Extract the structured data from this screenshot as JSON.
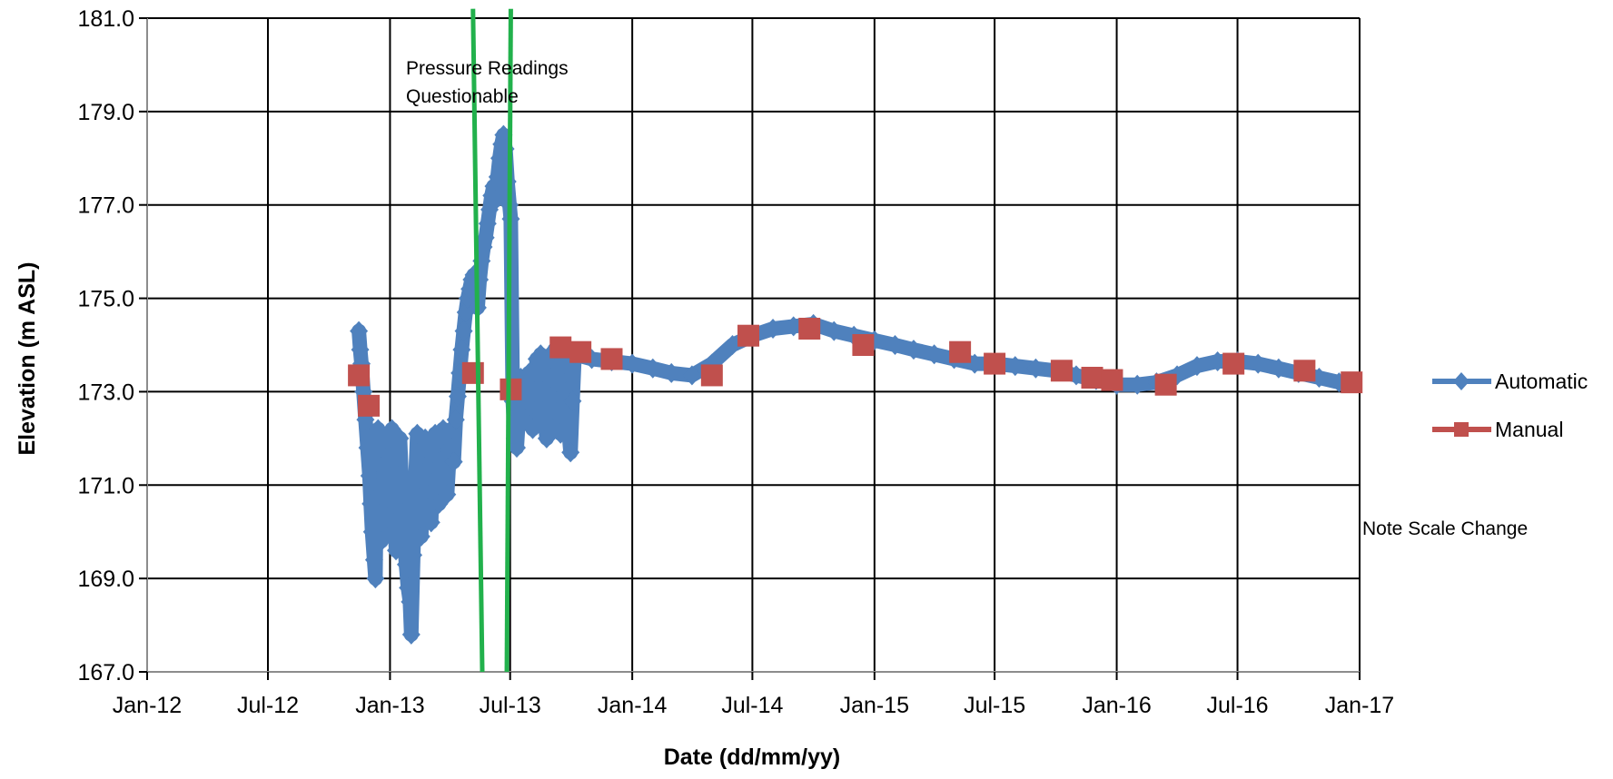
{
  "chart_data": {
    "type": "scatter",
    "title": "",
    "xlabel": "Date (dd/mm/yy)",
    "ylabel": "Elevation (m ASL)",
    "xlim": [
      "2012-01-01",
      "2017-01-01"
    ],
    "ylim": [
      167.0,
      181.0
    ],
    "grid": true,
    "legend_position": "right",
    "x_ticks": [
      "Jan-12",
      "Jul-12",
      "Jan-13",
      "Jul-13",
      "Jan-14",
      "Jul-14",
      "Jan-15",
      "Jul-15",
      "Jan-16",
      "Jul-16",
      "Jan-17"
    ],
    "x_tick_dates": [
      "2012-01-01",
      "2012-07-01",
      "2013-01-01",
      "2013-07-01",
      "2014-01-01",
      "2014-07-01",
      "2015-01-01",
      "2015-07-01",
      "2016-01-01",
      "2016-07-01",
      "2017-01-01"
    ],
    "y_ticks": [
      "167.0",
      "169.0",
      "171.0",
      "173.0",
      "175.0",
      "177.0",
      "179.0",
      "181.0"
    ],
    "y_tick_values": [
      167,
      169,
      171,
      173,
      175,
      177,
      179,
      181
    ],
    "annotations": {
      "pressure_line1": "Pressure  Readings",
      "pressure_line2": "Questionable",
      "scale_note": "Note Scale Change"
    },
    "marker_lines": [
      {
        "color": "#22B14C",
        "from": {
          "x": "2013-05-06",
          "y": 181.2
        },
        "to": {
          "x": "2013-05-20",
          "y": 167.0
        }
      },
      {
        "color": "#22B14C",
        "from": {
          "x": "2013-07-02",
          "y": 181.2
        },
        "to": {
          "x": "2013-06-26",
          "y": 167.0
        }
      }
    ],
    "series": [
      {
        "name": "Automatic",
        "color": "#4F81BD",
        "marker": "diamond",
        "points": [
          [
            "2012-11-15",
            174.3
          ],
          [
            "2012-11-17",
            173.9
          ],
          [
            "2012-11-19",
            173.6
          ],
          [
            "2012-11-22",
            173.0
          ],
          [
            "2012-11-25",
            172.4
          ],
          [
            "2012-11-28",
            171.8
          ],
          [
            "2012-12-01",
            171.2
          ],
          [
            "2012-12-03",
            170.6
          ],
          [
            "2012-12-05",
            170.0
          ],
          [
            "2012-12-08",
            169.4
          ],
          [
            "2012-12-10",
            169.0
          ],
          [
            "2012-12-12",
            171.5
          ],
          [
            "2012-12-14",
            172.2
          ],
          [
            "2012-12-16",
            170.8
          ],
          [
            "2012-12-19",
            169.8
          ],
          [
            "2012-12-22",
            171.0
          ],
          [
            "2012-12-25",
            172.0
          ],
          [
            "2012-12-28",
            170.3
          ],
          [
            "2013-01-01",
            171.6
          ],
          [
            "2013-01-04",
            172.2
          ],
          [
            "2013-01-07",
            170.6
          ],
          [
            "2013-01-10",
            169.6
          ],
          [
            "2013-01-13",
            171.2
          ],
          [
            "2013-01-16",
            172.0
          ],
          [
            "2013-01-19",
            170.9
          ],
          [
            "2013-01-22",
            170.0
          ],
          [
            "2013-01-25",
            169.3
          ],
          [
            "2013-01-28",
            168.8
          ],
          [
            "2013-01-31",
            168.5
          ],
          [
            "2013-02-02",
            167.8
          ],
          [
            "2013-02-05",
            169.5
          ],
          [
            "2013-02-08",
            171.0
          ],
          [
            "2013-02-11",
            172.1
          ],
          [
            "2013-02-14",
            170.7
          ],
          [
            "2013-02-17",
            169.9
          ],
          [
            "2013-02-20",
            171.3
          ],
          [
            "2013-02-23",
            172.0
          ],
          [
            "2013-02-26",
            170.5
          ],
          [
            "2013-03-01",
            171.4
          ],
          [
            "2013-03-04",
            170.2
          ],
          [
            "2013-03-07",
            171.6
          ],
          [
            "2013-03-10",
            172.1
          ],
          [
            "2013-03-13",
            171.0
          ],
          [
            "2013-03-16",
            170.6
          ],
          [
            "2013-03-19",
            171.5
          ],
          [
            "2013-03-22",
            172.2
          ],
          [
            "2013-03-25",
            171.3
          ],
          [
            "2013-03-28",
            170.8
          ],
          [
            "2013-04-01",
            171.8
          ],
          [
            "2013-04-04",
            172.2
          ],
          [
            "2013-04-07",
            171.5
          ],
          [
            "2013-04-10",
            172.4
          ],
          [
            "2013-04-13",
            172.9
          ],
          [
            "2013-04-16",
            173.4
          ],
          [
            "2013-04-19",
            173.9
          ],
          [
            "2013-04-22",
            174.3
          ],
          [
            "2013-04-25",
            174.7
          ],
          [
            "2013-04-28",
            175.0
          ],
          [
            "2013-05-01",
            175.2
          ],
          [
            "2013-05-04",
            175.4
          ],
          [
            "2013-05-07",
            175.5
          ],
          [
            "2013-05-10",
            175.3
          ],
          [
            "2013-05-13",
            174.8
          ],
          [
            "2013-05-16",
            175.4
          ],
          [
            "2013-05-19",
            175.8
          ],
          [
            "2013-05-22",
            176.1
          ],
          [
            "2013-05-25",
            176.3
          ],
          [
            "2013-05-28",
            176.6
          ],
          [
            "2013-05-31",
            176.9
          ],
          [
            "2013-06-03",
            177.2
          ],
          [
            "2013-06-06",
            177.4
          ],
          [
            "2013-06-09",
            177.1
          ],
          [
            "2013-06-12",
            177.6
          ],
          [
            "2013-06-15",
            178.0
          ],
          [
            "2013-06-18",
            178.3
          ],
          [
            "2013-06-21",
            178.5
          ],
          [
            "2013-06-24",
            178.2
          ],
          [
            "2013-06-27",
            177.5
          ],
          [
            "2013-06-30",
            177.0
          ],
          [
            "2013-07-02",
            176.7
          ],
          [
            "2013-07-05",
            172.8
          ],
          [
            "2013-07-08",
            172.0
          ],
          [
            "2013-07-11",
            171.8
          ],
          [
            "2013-07-14",
            172.5
          ],
          [
            "2013-07-17",
            173.3
          ],
          [
            "2013-07-20",
            173.0
          ],
          [
            "2013-07-23",
            172.4
          ],
          [
            "2013-07-26",
            172.9
          ],
          [
            "2013-07-29",
            173.4
          ],
          [
            "2013-08-01",
            172.7
          ],
          [
            "2013-08-04",
            172.2
          ],
          [
            "2013-08-07",
            173.0
          ],
          [
            "2013-08-10",
            173.7
          ],
          [
            "2013-08-13",
            173.5
          ],
          [
            "2013-08-16",
            173.8
          ],
          [
            "2013-08-19",
            173.0
          ],
          [
            "2013-08-22",
            172.4
          ],
          [
            "2013-08-25",
            172.0
          ],
          [
            "2013-08-28",
            172.6
          ],
          [
            "2013-08-31",
            173.3
          ],
          [
            "2013-09-03",
            173.8
          ],
          [
            "2013-09-06",
            173.9
          ],
          [
            "2013-09-09",
            173.2
          ],
          [
            "2013-09-12",
            172.5
          ],
          [
            "2013-09-15",
            172.1
          ],
          [
            "2013-09-18",
            172.7
          ],
          [
            "2013-09-21",
            173.6
          ],
          [
            "2013-09-24",
            173.0
          ],
          [
            "2013-09-27",
            172.2
          ],
          [
            "2013-09-30",
            171.7
          ],
          [
            "2013-10-03",
            172.8
          ],
          [
            "2013-10-06",
            173.8
          ],
          [
            "2013-11-01",
            173.7
          ],
          [
            "2013-12-01",
            173.65
          ],
          [
            "2014-01-01",
            173.6
          ],
          [
            "2014-02-01",
            173.5
          ],
          [
            "2014-03-01",
            173.4
          ],
          [
            "2014-04-01",
            173.35
          ],
          [
            "2014-05-01",
            173.6
          ],
          [
            "2014-06-01",
            174.0
          ],
          [
            "2014-07-01",
            174.2
          ],
          [
            "2014-08-01",
            174.35
          ],
          [
            "2014-09-01",
            174.4
          ],
          [
            "2014-10-01",
            174.45
          ],
          [
            "2014-11-01",
            174.3
          ],
          [
            "2014-12-01",
            174.2
          ],
          [
            "2015-01-01",
            174.1
          ],
          [
            "2015-02-01",
            174.0
          ],
          [
            "2015-03-01",
            173.9
          ],
          [
            "2015-04-01",
            173.8
          ],
          [
            "2015-05-01",
            173.7
          ],
          [
            "2015-06-01",
            173.6
          ],
          [
            "2015-07-01",
            173.6
          ],
          [
            "2015-08-01",
            173.55
          ],
          [
            "2015-09-01",
            173.5
          ],
          [
            "2015-10-01",
            173.45
          ],
          [
            "2015-11-01",
            173.35
          ],
          [
            "2015-12-01",
            173.25
          ],
          [
            "2016-01-01",
            173.15
          ],
          [
            "2016-02-01",
            173.15
          ],
          [
            "2016-03-01",
            173.2
          ],
          [
            "2016-04-01",
            173.35
          ],
          [
            "2016-05-01",
            173.55
          ],
          [
            "2016-06-01",
            173.65
          ],
          [
            "2016-07-01",
            173.65
          ],
          [
            "2016-08-01",
            173.6
          ],
          [
            "2016-09-01",
            173.5
          ],
          [
            "2016-10-01",
            173.4
          ],
          [
            "2016-11-01",
            173.3
          ],
          [
            "2016-12-01",
            173.2
          ]
        ]
      },
      {
        "name": "Manual",
        "color": "#C0504D",
        "marker": "square",
        "points": [
          [
            "2012-11-15",
            173.35
          ],
          [
            "2012-11-30",
            172.7
          ],
          [
            "2013-05-06",
            173.4
          ],
          [
            "2013-07-02",
            173.05
          ],
          [
            "2013-09-15",
            173.95
          ],
          [
            "2013-10-15",
            173.85
          ],
          [
            "2013-12-01",
            173.7
          ],
          [
            "2014-05-01",
            173.35
          ],
          [
            "2014-06-25",
            174.2
          ],
          [
            "2014-09-25",
            174.35
          ],
          [
            "2014-12-15",
            174.0
          ],
          [
            "2015-05-10",
            173.85
          ],
          [
            "2015-07-01",
            173.6
          ],
          [
            "2015-10-10",
            173.45
          ],
          [
            "2015-11-25",
            173.3
          ],
          [
            "2015-12-25",
            173.25
          ],
          [
            "2016-03-15",
            173.15
          ],
          [
            "2016-06-25",
            173.6
          ],
          [
            "2016-10-10",
            173.45
          ],
          [
            "2016-12-20",
            173.2
          ]
        ]
      }
    ]
  }
}
